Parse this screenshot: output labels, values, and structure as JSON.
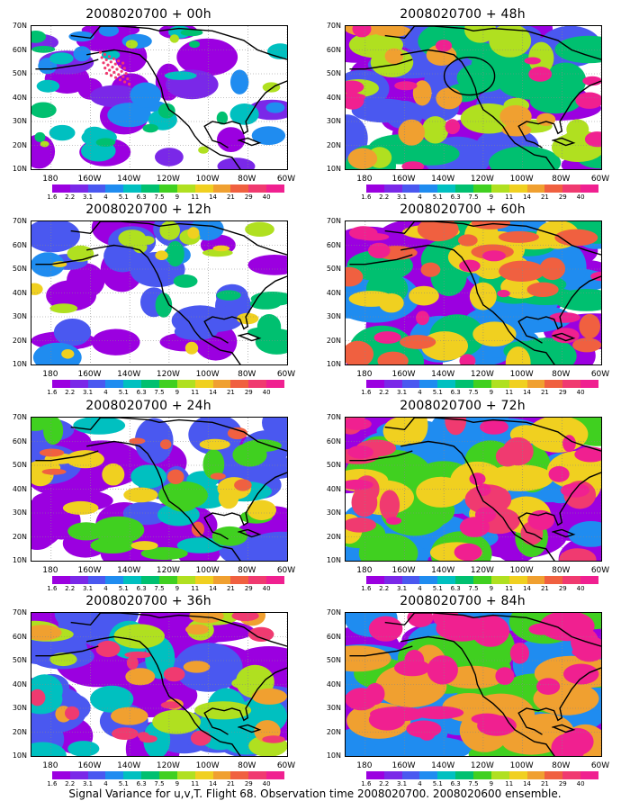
{
  "figure": {
    "caption": "Signal Variance for u,v,T. Flight 68. Observation time 2008020700. 2008020600 ensemble."
  },
  "axes": {
    "lat_labels": [
      "70N",
      "60N",
      "50N",
      "40N",
      "30N",
      "20N",
      "10N"
    ],
    "lon_labels": [
      "180",
      "160W",
      "140W",
      "120W",
      "100W",
      "80W",
      "60W"
    ],
    "lon_range": [
      170,
      300
    ],
    "lat_range": [
      10,
      70
    ]
  },
  "colorbar": {
    "labels": [
      "1.6",
      "2.2",
      "3.1",
      "4",
      "5.1",
      "6.3",
      "7.5",
      "9",
      "11",
      "14",
      "21",
      "29",
      "40"
    ],
    "colors": [
      "#ffffff",
      "#9b00e0",
      "#7a28e8",
      "#4a58f0",
      "#1f8cf0",
      "#00c0c0",
      "#00c070",
      "#40d020",
      "#b0e020",
      "#f0d020",
      "#f0a030",
      "#f06040",
      "#f03a70",
      "#f02090"
    ]
  },
  "panels": [
    {
      "title": "2008020700 + 00h",
      "col": 0,
      "row": 0,
      "intensity": 0.15,
      "has_circle": false,
      "has_dots": true
    },
    {
      "title": "2008020700 + 12h",
      "col": 0,
      "row": 1,
      "intensity": 0.3,
      "has_circle": false,
      "has_dots": false
    },
    {
      "title": "2008020700 + 24h",
      "col": 0,
      "row": 2,
      "intensity": 0.45,
      "has_circle": false,
      "has_dots": false
    },
    {
      "title": "2008020700 + 36h",
      "col": 0,
      "row": 3,
      "intensity": 0.55,
      "has_circle": false,
      "has_dots": false
    },
    {
      "title": "2008020700 + 48h",
      "col": 1,
      "row": 0,
      "intensity": 0.6,
      "has_circle": true,
      "has_dots": false
    },
    {
      "title": "2008020700 + 60h",
      "col": 1,
      "row": 1,
      "intensity": 0.7,
      "has_circle": false,
      "has_dots": false
    },
    {
      "title": "2008020700 + 72h",
      "col": 1,
      "row": 2,
      "intensity": 0.8,
      "has_circle": false,
      "has_dots": false
    },
    {
      "title": "2008020700 + 84h",
      "col": 1,
      "row": 3,
      "intensity": 0.9,
      "has_circle": false,
      "has_dots": false
    }
  ]
}
